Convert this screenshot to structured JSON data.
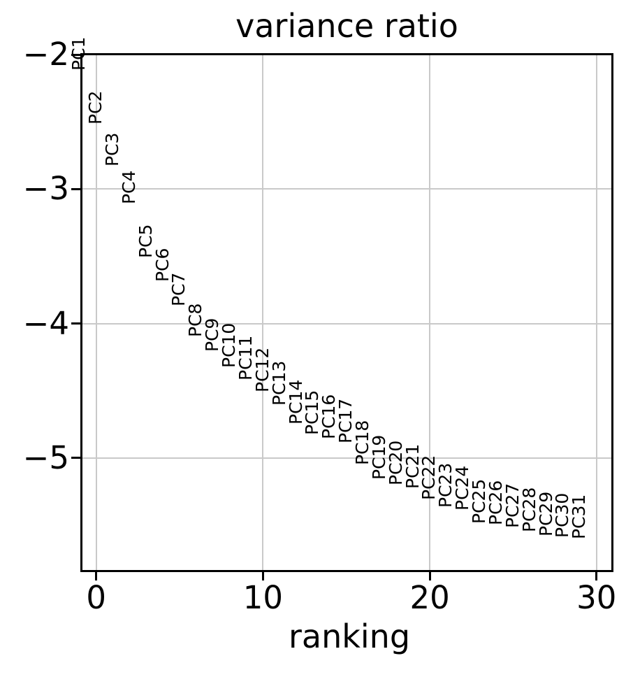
{
  "figure": {
    "background_color": "#ffffff",
    "text_color": "#000000",
    "grid_color": "#c9c9c9",
    "spine_color": "#000000"
  },
  "chart_data": {
    "type": "scatter",
    "title": "variance ratio",
    "xlabel": "ranking",
    "ylabel": "",
    "grid": true,
    "legend": false,
    "marker_style": "rotated text labels (90deg) at each point, no dot markers",
    "xlim": [
      -0.87,
      30.93
    ],
    "ylim": [
      -5.84,
      -2.0
    ],
    "xticks": [
      0,
      10,
      20,
      30
    ],
    "xtick_labels": [
      "0",
      "10",
      "20",
      "30"
    ],
    "yticks": [
      -2,
      -3,
      -4,
      -5
    ],
    "ytick_labels": [
      "−2",
      "−3",
      "−4",
      "−5"
    ],
    "points": [
      {
        "label": "PC1",
        "x": 0,
        "y": -2.1
      },
      {
        "label": "PC2",
        "x": 1,
        "y": -2.5
      },
      {
        "label": "PC3",
        "x": 2,
        "y": -2.81
      },
      {
        "label": "PC4",
        "x": 3,
        "y": -3.09
      },
      {
        "label": "PC5",
        "x": 4,
        "y": -3.49
      },
      {
        "label": "PC6",
        "x": 5,
        "y": -3.67
      },
      {
        "label": "PC7",
        "x": 6,
        "y": -3.85
      },
      {
        "label": "PC8",
        "x": 7,
        "y": -4.08
      },
      {
        "label": "PC9",
        "x": 8,
        "y": -4.19
      },
      {
        "label": "PC10",
        "x": 9,
        "y": -4.31
      },
      {
        "label": "PC11",
        "x": 10,
        "y": -4.4
      },
      {
        "label": "PC12",
        "x": 11,
        "y": -4.49
      },
      {
        "label": "PC13",
        "x": 12,
        "y": -4.59
      },
      {
        "label": "PC14",
        "x": 13,
        "y": -4.73
      },
      {
        "label": "PC15",
        "x": 14,
        "y": -4.81
      },
      {
        "label": "PC16",
        "x": 15,
        "y": -4.84
      },
      {
        "label": "PC17",
        "x": 16,
        "y": -4.87
      },
      {
        "label": "PC18",
        "x": 17,
        "y": -5.03
      },
      {
        "label": "PC19",
        "x": 18,
        "y": -5.14
      },
      {
        "label": "PC20",
        "x": 19,
        "y": -5.18
      },
      {
        "label": "PC21",
        "x": 20,
        "y": -5.21
      },
      {
        "label": "PC22",
        "x": 21,
        "y": -5.29
      },
      {
        "label": "PC23",
        "x": 22,
        "y": -5.35
      },
      {
        "label": "PC24",
        "x": 23,
        "y": -5.37
      },
      {
        "label": "PC25",
        "x": 24,
        "y": -5.47
      },
      {
        "label": "PC26",
        "x": 25,
        "y": -5.48
      },
      {
        "label": "PC27",
        "x": 26,
        "y": -5.5
      },
      {
        "label": "PC28",
        "x": 27,
        "y": -5.53
      },
      {
        "label": "PC29",
        "x": 28,
        "y": -5.56
      },
      {
        "label": "PC30",
        "x": 29,
        "y": -5.57
      },
      {
        "label": "PC31",
        "x": 30,
        "y": -5.58
      }
    ]
  }
}
